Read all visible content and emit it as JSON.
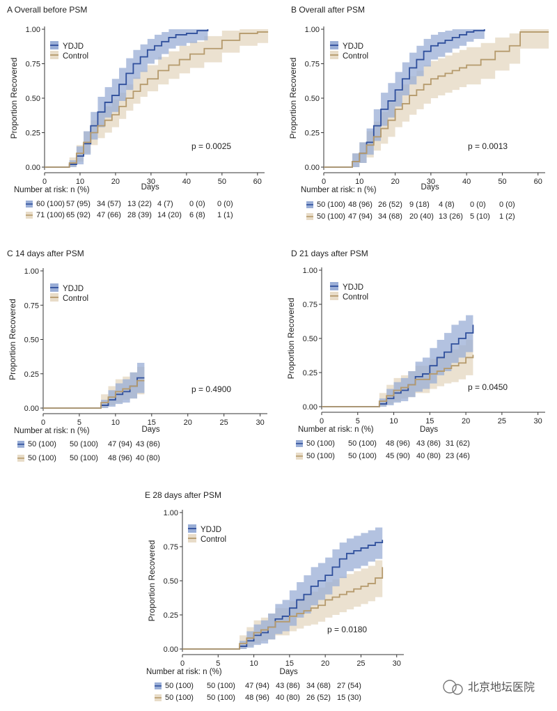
{
  "watermark": "北京地坛医院",
  "colors": {
    "ydjd_line": "#2f4f9c",
    "ydjd_band": "#9aaed6",
    "control_line": "#b59a6c",
    "control_band": "#e8dcc8"
  },
  "chart_data": [
    {
      "type": "line",
      "panel": "A",
      "title": "A  Overall before PSM",
      "xlabel": "Days",
      "ylabel": "Proportion Recovered",
      "xlim": [
        0,
        62
      ],
      "ylim": [
        0,
        1
      ],
      "xticks": [
        0,
        10,
        20,
        30,
        40,
        50,
        60
      ],
      "yticks": [
        "0.00",
        "0.25",
        "0.50",
        "0.75",
        "1.00"
      ],
      "p_value": "p = 0.0025",
      "legend": [
        "YDJD",
        "Control"
      ],
      "series": [
        {
          "name": "YDJD",
          "step_x": [
            0,
            7,
            9,
            11,
            13,
            15,
            17,
            19,
            21,
            23,
            25,
            27,
            29,
            31,
            33,
            35,
            37,
            40,
            43,
            46
          ],
          "y": [
            0,
            0.02,
            0.08,
            0.17,
            0.3,
            0.4,
            0.47,
            0.52,
            0.6,
            0.68,
            0.75,
            0.8,
            0.85,
            0.88,
            0.91,
            0.94,
            0.96,
            0.97,
            0.99,
            1.0
          ],
          "lower": [
            0,
            0,
            0.02,
            0.09,
            0.2,
            0.29,
            0.36,
            0.4,
            0.48,
            0.56,
            0.64,
            0.69,
            0.75,
            0.78,
            0.82,
            0.86,
            0.88,
            0.9,
            0.92,
            0.94
          ],
          "upper": [
            0,
            0.05,
            0.15,
            0.26,
            0.4,
            0.51,
            0.58,
            0.64,
            0.72,
            0.79,
            0.85,
            0.89,
            0.93,
            0.96,
            0.98,
            1.0,
            1.0,
            1.0,
            1.0,
            1.0
          ]
        },
        {
          "name": "Control",
          "step_x": [
            0,
            7,
            9,
            11,
            13,
            15,
            17,
            19,
            21,
            23,
            25,
            27,
            29,
            32,
            35,
            38,
            41,
            45,
            50,
            55,
            60,
            63
          ],
          "y": [
            0,
            0.03,
            0.1,
            0.18,
            0.25,
            0.3,
            0.34,
            0.38,
            0.44,
            0.5,
            0.55,
            0.6,
            0.64,
            0.7,
            0.74,
            0.78,
            0.82,
            0.86,
            0.92,
            0.97,
            0.98,
            0.98
          ],
          "lower": [
            0,
            0,
            0.04,
            0.1,
            0.16,
            0.21,
            0.25,
            0.29,
            0.35,
            0.41,
            0.46,
            0.51,
            0.55,
            0.6,
            0.64,
            0.68,
            0.72,
            0.76,
            0.83,
            0.88,
            0.9,
            0.9
          ],
          "upper": [
            0,
            0.07,
            0.16,
            0.26,
            0.34,
            0.4,
            0.44,
            0.49,
            0.54,
            0.6,
            0.65,
            0.7,
            0.74,
            0.8,
            0.84,
            0.88,
            0.91,
            0.95,
            0.99,
            1.0,
            1.0,
            1.0
          ]
        }
      ],
      "risk_title": "Number at risk: n (%)",
      "risk_table": {
        "YDJD": [
          "60 (100)",
          "57 (95)",
          "34 (57)",
          "13 (22)",
          "4 (7)",
          "0 (0)",
          "0 (0)"
        ],
        "Control": [
          "71 (100)",
          "65 (92)",
          "47 (66)",
          "28 (39)",
          "14 (20)",
          "6 (8)",
          "1 (1)"
        ]
      }
    },
    {
      "type": "line",
      "panel": "B",
      "title": "B  Overall after PSM",
      "xlabel": "Days",
      "ylabel": "Proportion Recovered",
      "xlim": [
        0,
        62
      ],
      "ylim": [
        0,
        1
      ],
      "xticks": [
        0,
        10,
        20,
        30,
        40,
        50,
        60
      ],
      "yticks": [
        "0.00",
        "0.25",
        "0.50",
        "0.75",
        "1.00"
      ],
      "p_value": "p = 0.0013",
      "legend": [
        "YDJD",
        "Control"
      ],
      "series": [
        {
          "name": "YDJD",
          "step_x": [
            0,
            8,
            10,
            12,
            14,
            16,
            18,
            20,
            22,
            24,
            26,
            28,
            30,
            32,
            34,
            36,
            38,
            40,
            42,
            45
          ],
          "y": [
            0,
            0.04,
            0.1,
            0.18,
            0.3,
            0.42,
            0.48,
            0.56,
            0.64,
            0.72,
            0.78,
            0.84,
            0.88,
            0.9,
            0.92,
            0.94,
            0.96,
            0.98,
            0.99,
            1.0
          ],
          "lower": [
            0,
            0,
            0.03,
            0.09,
            0.19,
            0.3,
            0.36,
            0.44,
            0.52,
            0.6,
            0.66,
            0.73,
            0.78,
            0.8,
            0.83,
            0.86,
            0.88,
            0.91,
            0.93,
            0.94
          ],
          "upper": [
            0,
            0.1,
            0.18,
            0.28,
            0.42,
            0.54,
            0.61,
            0.69,
            0.76,
            0.83,
            0.88,
            0.93,
            0.96,
            0.98,
            0.99,
            1.0,
            1.0,
            1.0,
            1.0,
            1.0
          ]
        },
        {
          "name": "Control",
          "step_x": [
            0,
            8,
            10,
            12,
            14,
            16,
            18,
            20,
            22,
            24,
            26,
            28,
            30,
            32,
            34,
            36,
            38,
            40,
            44,
            48,
            52,
            55,
            63
          ],
          "y": [
            0,
            0.04,
            0.1,
            0.16,
            0.22,
            0.28,
            0.34,
            0.42,
            0.46,
            0.52,
            0.56,
            0.6,
            0.64,
            0.66,
            0.68,
            0.7,
            0.72,
            0.74,
            0.78,
            0.84,
            0.88,
            0.98,
            0.98
          ],
          "lower": [
            0,
            0,
            0.03,
            0.07,
            0.12,
            0.17,
            0.22,
            0.29,
            0.33,
            0.38,
            0.42,
            0.46,
            0.5,
            0.52,
            0.54,
            0.56,
            0.58,
            0.6,
            0.64,
            0.7,
            0.75,
            0.86,
            0.86
          ],
          "upper": [
            0,
            0.1,
            0.18,
            0.26,
            0.33,
            0.4,
            0.47,
            0.55,
            0.6,
            0.66,
            0.7,
            0.74,
            0.77,
            0.79,
            0.81,
            0.83,
            0.85,
            0.87,
            0.9,
            0.94,
            0.97,
            1.0,
            1.0
          ]
        }
      ],
      "risk_title": "Number at risk: n (%)",
      "risk_table": {
        "YDJD": [
          "50 (100)",
          "48 (96)",
          "26 (52)",
          "9 (18)",
          "4 (8)",
          "0 (0)",
          "0 (0)"
        ],
        "Control": [
          "50 (100)",
          "47 (94)",
          "34 (68)",
          "20 (40)",
          "13 (26)",
          "5 (10)",
          "1 (2)"
        ]
      }
    },
    {
      "type": "line",
      "panel": "C",
      "title": "C  14 days after PSM",
      "xlabel": "Days",
      "ylabel": "Proportion Recovered",
      "xlim": [
        0,
        31
      ],
      "ylim": [
        0,
        1
      ],
      "xticks": [
        0,
        5,
        10,
        15,
        20,
        25,
        30
      ],
      "yticks": [
        "0.00",
        "0.25",
        "0.50",
        "0.75",
        "1.00"
      ],
      "p_value": "p = 0.4900",
      "legend": [
        "YDJD",
        "Control"
      ],
      "series": [
        {
          "name": "YDJD",
          "step_x": [
            0,
            8,
            9,
            10,
            11,
            12,
            13,
            14
          ],
          "y": [
            0,
            0.02,
            0.06,
            0.1,
            0.12,
            0.16,
            0.22,
            0.22
          ],
          "lower": [
            0,
            0,
            0.01,
            0.03,
            0.04,
            0.07,
            0.11,
            0.11
          ],
          "upper": [
            0,
            0.06,
            0.13,
            0.18,
            0.21,
            0.26,
            0.33,
            0.33
          ]
        },
        {
          "name": "Control",
          "step_x": [
            0,
            8,
            9,
            10,
            11,
            12,
            13,
            14
          ],
          "y": [
            0,
            0.04,
            0.08,
            0.12,
            0.14,
            0.16,
            0.2,
            0.2
          ],
          "lower": [
            0,
            0,
            0.02,
            0.04,
            0.06,
            0.07,
            0.1,
            0.1
          ],
          "upper": [
            0,
            0.1,
            0.16,
            0.21,
            0.23,
            0.26,
            0.3,
            0.3
          ]
        }
      ],
      "risk_title": "Number at risk: n (%)",
      "risk_table": {
        "YDJD": [
          "50 (100)",
          "50 (100)",
          "47 (94)",
          "43 (86)"
        ],
        "Control": [
          "50 (100)",
          "50 (100)",
          "48 (96)",
          "40 (80)"
        ]
      }
    },
    {
      "type": "line",
      "panel": "D",
      "title": "D  21 days after PSM",
      "xlabel": "Days",
      "ylabel": "Proportion Recovered",
      "xlim": [
        0,
        31
      ],
      "ylim": [
        0,
        1
      ],
      "xticks": [
        0,
        5,
        10,
        15,
        20,
        25,
        30
      ],
      "yticks": [
        "0.00",
        "0.25",
        "0.50",
        "0.75",
        "1.00"
      ],
      "p_value": "p = 0.0450",
      "legend": [
        "YDJD",
        "Control"
      ],
      "series": [
        {
          "name": "YDJD",
          "step_x": [
            0,
            8,
            9,
            10,
            11,
            12,
            13,
            14,
            15,
            16,
            17,
            18,
            19,
            20,
            21
          ],
          "y": [
            0,
            0.02,
            0.06,
            0.1,
            0.12,
            0.16,
            0.22,
            0.24,
            0.3,
            0.36,
            0.4,
            0.46,
            0.5,
            0.54,
            0.6
          ],
          "lower": [
            0,
            0,
            0.01,
            0.03,
            0.04,
            0.07,
            0.11,
            0.13,
            0.17,
            0.23,
            0.26,
            0.32,
            0.36,
            0.4,
            0.46
          ],
          "upper": [
            0,
            0.06,
            0.13,
            0.18,
            0.21,
            0.26,
            0.33,
            0.36,
            0.43,
            0.49,
            0.54,
            0.6,
            0.63,
            0.67,
            0.73
          ]
        },
        {
          "name": "Control",
          "step_x": [
            0,
            8,
            9,
            10,
            11,
            12,
            13,
            14,
            15,
            16,
            17,
            18,
            19,
            20,
            21
          ],
          "y": [
            0,
            0.04,
            0.08,
            0.12,
            0.14,
            0.16,
            0.2,
            0.2,
            0.24,
            0.26,
            0.28,
            0.3,
            0.32,
            0.36,
            0.38
          ],
          "lower": [
            0,
            0,
            0.02,
            0.04,
            0.06,
            0.07,
            0.1,
            0.1,
            0.13,
            0.15,
            0.17,
            0.18,
            0.2,
            0.23,
            0.25
          ],
          "upper": [
            0,
            0.1,
            0.16,
            0.21,
            0.23,
            0.26,
            0.3,
            0.3,
            0.35,
            0.37,
            0.4,
            0.42,
            0.45,
            0.49,
            0.51
          ]
        }
      ],
      "risk_title": "Number at risk: n (%)",
      "risk_table": {
        "YDJD": [
          "50 (100)",
          "50 (100)",
          "48 (96)",
          "43 (86)",
          "31 (62)"
        ],
        "Control": [
          "50 (100)",
          "50 (100)",
          "45 (90)",
          "40 (80)",
          "23 (46)"
        ]
      }
    },
    {
      "type": "line",
      "panel": "E",
      "title": "E  28 days after PSM",
      "xlabel": "Days",
      "ylabel": "Proportion Recovered",
      "xlim": [
        0,
        31
      ],
      "ylim": [
        0,
        1
      ],
      "xticks": [
        0,
        5,
        10,
        15,
        20,
        25,
        30
      ],
      "yticks": [
        "0.00",
        "0.25",
        "0.50",
        "0.75",
        "1.00"
      ],
      "p_value": "p = 0.0180",
      "legend": [
        "YDJD",
        "Control"
      ],
      "series": [
        {
          "name": "YDJD",
          "step_x": [
            0,
            8,
            9,
            10,
            11,
            12,
            13,
            14,
            15,
            16,
            17,
            18,
            19,
            20,
            21,
            22,
            23,
            24,
            25,
            26,
            27,
            28
          ],
          "y": [
            0,
            0.02,
            0.06,
            0.1,
            0.12,
            0.16,
            0.22,
            0.24,
            0.3,
            0.36,
            0.4,
            0.46,
            0.5,
            0.54,
            0.6,
            0.66,
            0.7,
            0.72,
            0.74,
            0.76,
            0.78,
            0.8
          ],
          "lower": [
            0,
            0,
            0.01,
            0.03,
            0.04,
            0.07,
            0.11,
            0.13,
            0.17,
            0.23,
            0.26,
            0.32,
            0.36,
            0.4,
            0.46,
            0.52,
            0.57,
            0.59,
            0.61,
            0.64,
            0.66,
            0.68
          ],
          "upper": [
            0,
            0.06,
            0.13,
            0.18,
            0.21,
            0.26,
            0.33,
            0.36,
            0.43,
            0.49,
            0.54,
            0.6,
            0.63,
            0.67,
            0.73,
            0.78,
            0.81,
            0.83,
            0.85,
            0.87,
            0.89,
            0.9
          ]
        },
        {
          "name": "Control",
          "step_x": [
            0,
            8,
            9,
            10,
            11,
            12,
            13,
            14,
            15,
            16,
            17,
            18,
            19,
            20,
            21,
            22,
            23,
            24,
            25,
            26,
            27,
            28
          ],
          "y": [
            0,
            0.04,
            0.08,
            0.12,
            0.14,
            0.16,
            0.2,
            0.2,
            0.24,
            0.26,
            0.28,
            0.3,
            0.32,
            0.36,
            0.38,
            0.4,
            0.42,
            0.44,
            0.46,
            0.48,
            0.52,
            0.6
          ],
          "lower": [
            0,
            0,
            0.02,
            0.04,
            0.06,
            0.07,
            0.1,
            0.1,
            0.13,
            0.15,
            0.17,
            0.18,
            0.2,
            0.23,
            0.25,
            0.27,
            0.29,
            0.31,
            0.33,
            0.35,
            0.38,
            0.46
          ],
          "upper": [
            0,
            0.1,
            0.16,
            0.21,
            0.23,
            0.26,
            0.3,
            0.3,
            0.35,
            0.37,
            0.4,
            0.42,
            0.45,
            0.49,
            0.51,
            0.53,
            0.55,
            0.57,
            0.59,
            0.61,
            0.65,
            0.73
          ]
        }
      ],
      "risk_title": "Number at risk: n (%)",
      "risk_table": {
        "YDJD": [
          "50 (100)",
          "50 (100)",
          "47 (94)",
          "43 (86)",
          "34 (68)",
          "27 (54)"
        ],
        "Control": [
          "50 (100)",
          "50 (100)",
          "48 (96)",
          "40 (80)",
          "26 (52)",
          "15 (30)"
        ]
      }
    }
  ]
}
